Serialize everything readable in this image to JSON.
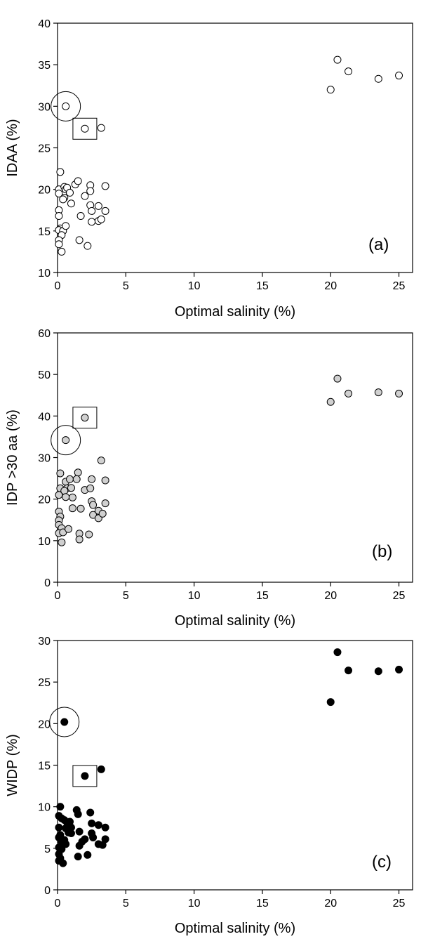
{
  "chart_data": [
    {
      "type": "scatter",
      "panel_label": "(a)",
      "xlabel": "Optimal salinity (%)",
      "ylabel": "IDAA (%)",
      "xlim": [
        0,
        26
      ],
      "ylim": [
        10,
        40
      ],
      "x_ticks": [
        "0",
        "5",
        "10",
        "15",
        "20",
        "25"
      ],
      "y_ticks": [
        "10",
        "15",
        "20",
        "25",
        "30",
        "35",
        "40"
      ],
      "marker_fill": "#ffffff",
      "points": [
        {
          "x": 0.1,
          "y": 20.0
        },
        {
          "x": 0.1,
          "y": 19.5
        },
        {
          "x": 0.2,
          "y": 22.1
        },
        {
          "x": 0.1,
          "y": 17.5
        },
        {
          "x": 0.1,
          "y": 16.8
        },
        {
          "x": 0.2,
          "y": 15.3
        },
        {
          "x": 0.1,
          "y": 15.1
        },
        {
          "x": 0.4,
          "y": 15.0
        },
        {
          "x": 0.3,
          "y": 14.5
        },
        {
          "x": 0.1,
          "y": 13.9
        },
        {
          "x": 0.1,
          "y": 13.4
        },
        {
          "x": 0.3,
          "y": 12.5
        },
        {
          "x": 0.5,
          "y": 20.3
        },
        {
          "x": 0.6,
          "y": 20.0
        },
        {
          "x": 0.5,
          "y": 19.0
        },
        {
          "x": 0.4,
          "y": 18.8
        },
        {
          "x": 0.7,
          "y": 20.2
        },
        {
          "x": 0.9,
          "y": 19.6
        },
        {
          "x": 0.6,
          "y": 15.6
        },
        {
          "x": 1.0,
          "y": 18.3
        },
        {
          "x": 1.3,
          "y": 20.6
        },
        {
          "x": 1.5,
          "y": 21.0
        },
        {
          "x": 1.7,
          "y": 16.8
        },
        {
          "x": 2.0,
          "y": 19.2
        },
        {
          "x": 1.6,
          "y": 13.9
        },
        {
          "x": 2.2,
          "y": 13.2
        },
        {
          "x": 2.4,
          "y": 20.5
        },
        {
          "x": 2.4,
          "y": 19.8
        },
        {
          "x": 2.4,
          "y": 18.1
        },
        {
          "x": 2.5,
          "y": 17.4
        },
        {
          "x": 2.5,
          "y": 16.1
        },
        {
          "x": 3.0,
          "y": 18.0
        },
        {
          "x": 3.0,
          "y": 16.2
        },
        {
          "x": 3.2,
          "y": 16.4
        },
        {
          "x": 3.5,
          "y": 20.4
        },
        {
          "x": 3.5,
          "y": 17.4
        },
        {
          "x": 0.6,
          "y": 30.0
        },
        {
          "x": 2.0,
          "y": 27.3
        },
        {
          "x": 3.2,
          "y": 27.4
        },
        {
          "x": 20.0,
          "y": 32.0
        },
        {
          "x": 20.5,
          "y": 35.6
        },
        {
          "x": 21.3,
          "y": 34.2
        },
        {
          "x": 23.5,
          "y": 33.3
        },
        {
          "x": 25.0,
          "y": 33.7
        }
      ],
      "highlight_circle": {
        "x": 0.6,
        "y": 30.0
      },
      "highlight_square": {
        "x": 2.0,
        "y": 27.3
      }
    },
    {
      "type": "scatter",
      "panel_label": "(b)",
      "xlabel": "Optimal salinity (%)",
      "ylabel": "IDP >30 aa (%)",
      "xlim": [
        0,
        26
      ],
      "ylim": [
        0,
        60
      ],
      "x_ticks": [
        "0",
        "5",
        "10",
        "15",
        "20",
        "25"
      ],
      "y_ticks": [
        "0",
        "10",
        "20",
        "30",
        "40",
        "50",
        "60"
      ],
      "marker_fill": "#d0d0d0",
      "points": [
        {
          "x": 0.2,
          "y": 26.2
        },
        {
          "x": 0.2,
          "y": 22.6
        },
        {
          "x": 0.1,
          "y": 21.0
        },
        {
          "x": 0.1,
          "y": 17.0
        },
        {
          "x": 0.2,
          "y": 15.8
        },
        {
          "x": 0.1,
          "y": 14.9
        },
        {
          "x": 0.1,
          "y": 13.8
        },
        {
          "x": 0.3,
          "y": 13.0
        },
        {
          "x": 0.1,
          "y": 11.8
        },
        {
          "x": 0.4,
          "y": 12.0
        },
        {
          "x": 0.3,
          "y": 9.6
        },
        {
          "x": 0.6,
          "y": 24.2
        },
        {
          "x": 0.7,
          "y": 22.6
        },
        {
          "x": 0.5,
          "y": 22.0
        },
        {
          "x": 0.6,
          "y": 20.5
        },
        {
          "x": 0.9,
          "y": 24.8
        },
        {
          "x": 1.0,
          "y": 22.7
        },
        {
          "x": 0.8,
          "y": 12.8
        },
        {
          "x": 1.1,
          "y": 20.4
        },
        {
          "x": 1.1,
          "y": 17.8
        },
        {
          "x": 1.5,
          "y": 26.4
        },
        {
          "x": 1.4,
          "y": 24.8
        },
        {
          "x": 1.7,
          "y": 17.7
        },
        {
          "x": 2.0,
          "y": 22.2
        },
        {
          "x": 1.6,
          "y": 11.7
        },
        {
          "x": 1.6,
          "y": 10.3
        },
        {
          "x": 2.3,
          "y": 11.5
        },
        {
          "x": 2.5,
          "y": 24.8
        },
        {
          "x": 2.4,
          "y": 22.6
        },
        {
          "x": 2.5,
          "y": 19.5
        },
        {
          "x": 2.6,
          "y": 18.6
        },
        {
          "x": 2.6,
          "y": 16.2
        },
        {
          "x": 3.0,
          "y": 17.2
        },
        {
          "x": 3.0,
          "y": 15.4
        },
        {
          "x": 3.2,
          "y": 29.3
        },
        {
          "x": 3.3,
          "y": 16.5
        },
        {
          "x": 3.5,
          "y": 24.5
        },
        {
          "x": 3.5,
          "y": 19.0
        },
        {
          "x": 0.6,
          "y": 34.2
        },
        {
          "x": 2.0,
          "y": 39.6
        },
        {
          "x": 20.0,
          "y": 43.4
        },
        {
          "x": 20.5,
          "y": 49.0
        },
        {
          "x": 21.3,
          "y": 45.4
        },
        {
          "x": 23.5,
          "y": 45.7
        },
        {
          "x": 25.0,
          "y": 45.4
        }
      ],
      "highlight_circle": {
        "x": 0.6,
        "y": 34.2
      },
      "highlight_square": {
        "x": 2.0,
        "y": 39.6
      }
    },
    {
      "type": "scatter",
      "panel_label": "(c)",
      "xlabel": "Optimal salinity (%)",
      "ylabel": "WIDP (%)",
      "xlim": [
        0,
        26
      ],
      "ylim": [
        0,
        30
      ],
      "x_ticks": [
        "0",
        "5",
        "10",
        "15",
        "20",
        "25"
      ],
      "y_ticks": [
        "0",
        "5",
        "10",
        "15",
        "20",
        "25",
        "30"
      ],
      "marker_fill": "#000000",
      "points": [
        {
          "x": 0.2,
          "y": 10.0
        },
        {
          "x": 0.1,
          "y": 8.9
        },
        {
          "x": 0.3,
          "y": 8.6
        },
        {
          "x": 0.1,
          "y": 7.5
        },
        {
          "x": 0.2,
          "y": 6.6
        },
        {
          "x": 0.1,
          "y": 6.3
        },
        {
          "x": 0.3,
          "y": 5.8
        },
        {
          "x": 0.1,
          "y": 5.1
        },
        {
          "x": 0.3,
          "y": 4.9
        },
        {
          "x": 0.1,
          "y": 4.3
        },
        {
          "x": 0.2,
          "y": 3.8
        },
        {
          "x": 0.1,
          "y": 3.5
        },
        {
          "x": 0.4,
          "y": 3.2
        },
        {
          "x": 0.5,
          "y": 8.4
        },
        {
          "x": 0.7,
          "y": 8.1
        },
        {
          "x": 0.6,
          "y": 7.4
        },
        {
          "x": 0.8,
          "y": 6.9
        },
        {
          "x": 0.5,
          "y": 6.0
        },
        {
          "x": 0.6,
          "y": 5.5
        },
        {
          "x": 0.9,
          "y": 8.2
        },
        {
          "x": 1.0,
          "y": 7.5
        },
        {
          "x": 1.0,
          "y": 6.8
        },
        {
          "x": 1.4,
          "y": 9.6
        },
        {
          "x": 1.5,
          "y": 9.1
        },
        {
          "x": 1.6,
          "y": 7.0
        },
        {
          "x": 1.6,
          "y": 5.3
        },
        {
          "x": 1.8,
          "y": 5.8
        },
        {
          "x": 2.0,
          "y": 6.1
        },
        {
          "x": 1.5,
          "y": 4.0
        },
        {
          "x": 2.2,
          "y": 4.2
        },
        {
          "x": 2.4,
          "y": 9.3
        },
        {
          "x": 2.5,
          "y": 8.0
        },
        {
          "x": 2.5,
          "y": 6.8
        },
        {
          "x": 2.6,
          "y": 6.3
        },
        {
          "x": 3.0,
          "y": 7.8
        },
        {
          "x": 3.0,
          "y": 5.5
        },
        {
          "x": 3.3,
          "y": 5.4
        },
        {
          "x": 3.5,
          "y": 7.5
        },
        {
          "x": 3.5,
          "y": 6.1
        },
        {
          "x": 0.5,
          "y": 20.2
        },
        {
          "x": 2.0,
          "y": 13.7
        },
        {
          "x": 3.2,
          "y": 14.5
        },
        {
          "x": 20.0,
          "y": 22.6
        },
        {
          "x": 20.5,
          "y": 28.6
        },
        {
          "x": 21.3,
          "y": 26.4
        },
        {
          "x": 23.5,
          "y": 26.3
        },
        {
          "x": 25.0,
          "y": 26.5
        }
      ],
      "highlight_circle": {
        "x": 0.5,
        "y": 20.2
      },
      "highlight_square": {
        "x": 2.0,
        "y": 13.7
      }
    }
  ]
}
